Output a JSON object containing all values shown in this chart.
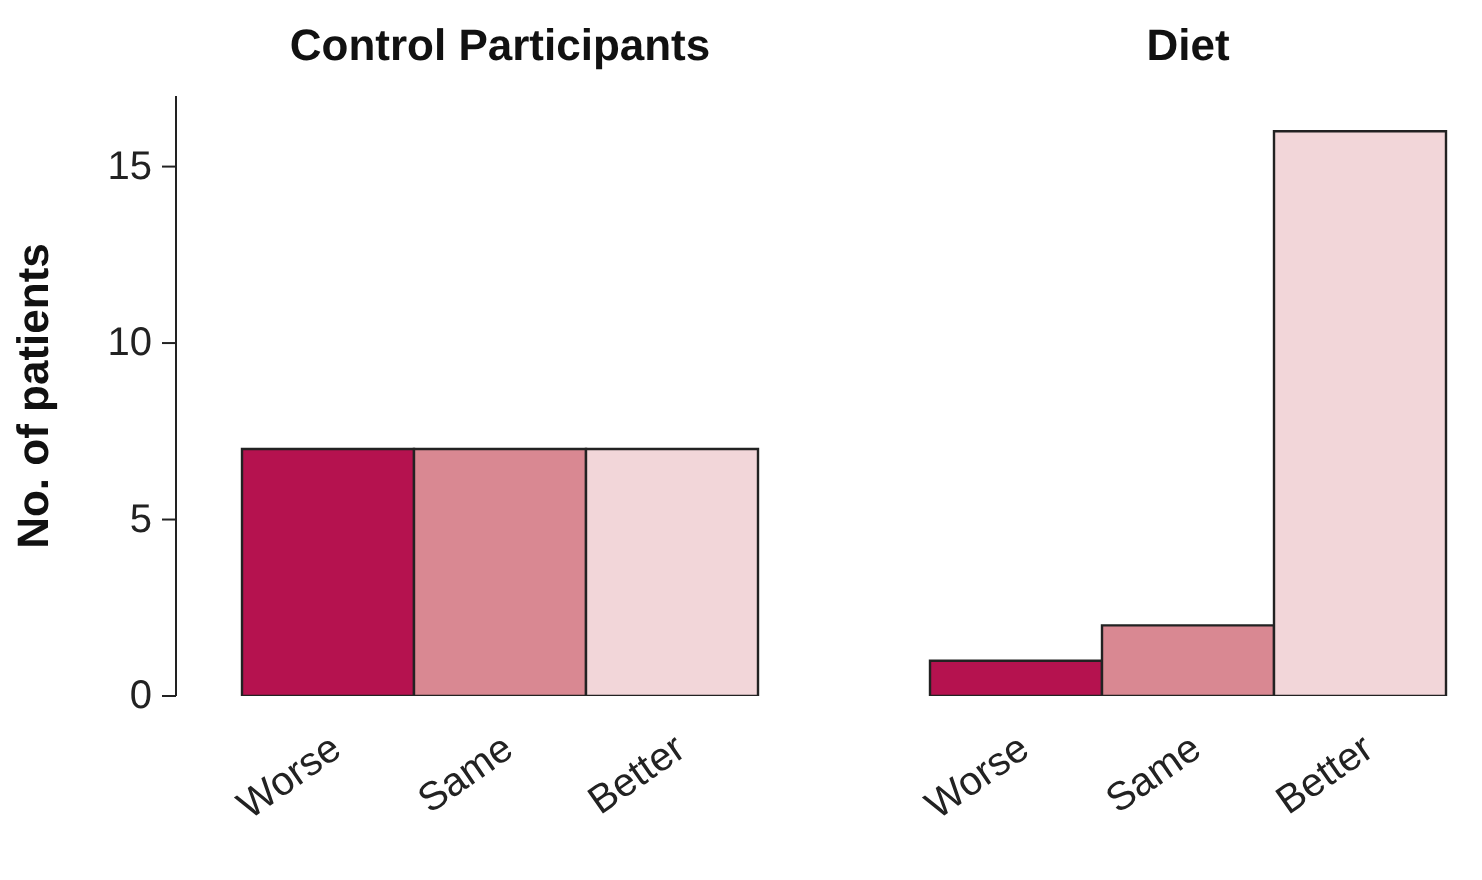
{
  "chart_data": {
    "type": "bar",
    "ylabel": "No. of patients",
    "annotations": [
      "Control Participants",
      "Diet"
    ],
    "categories": [
      "Worse",
      "Same",
      "Better",
      null,
      "Worse",
      "Same",
      "Better"
    ],
    "values": [
      7,
      7,
      7,
      null,
      1,
      2,
      16
    ],
    "colors": [
      "#b5124f",
      "#d98892",
      "#f2d6d9",
      null,
      "#b5124f",
      "#d98892",
      "#f2d6d9"
    ],
    "ylim": [
      0,
      17
    ],
    "yticks": [
      0,
      5,
      10,
      15
    ],
    "grid": false,
    "legend": false
  }
}
